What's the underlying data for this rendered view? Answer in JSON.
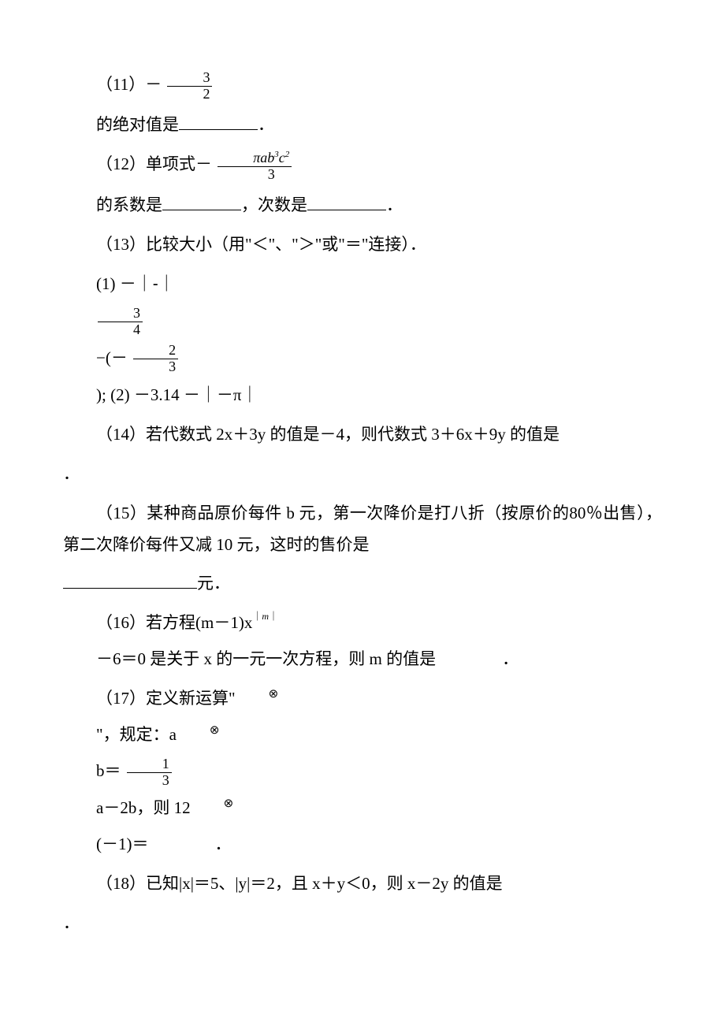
{
  "watermark_text": "",
  "colors": {
    "text": "#000000",
    "bg": "#ffffff",
    "watermark": "#f2f2f2"
  },
  "q11": {
    "prefix": "（11）－",
    "frac": {
      "num": "3",
      "den": "2"
    },
    "tail": "的绝对值是",
    "blank_w": 100,
    "end": "．"
  },
  "q12": {
    "prefix": "（12）单项式－",
    "frac_num_parts": {
      "pi": "π",
      "a": "a",
      "b": "b",
      "b_sup": "3",
      "c": "c",
      "c_sup": "2"
    },
    "frac_den": "3",
    "tail1": "的系数是",
    "blank1_w": 100,
    "mid": "，次数是",
    "blank2_w": 100,
    "end": "．"
  },
  "q13": {
    "head": "（13）比较大小（用\"＜\"、\"＞\"或\"＝\"连接）．",
    "l1a": "(1) －",
    "l1b": "｜-｜",
    "frac1": {
      "num": "3",
      "den": "4"
    },
    "mid": "−(－",
    "frac2": {
      "num": "2",
      "den": "3"
    },
    "l2": ");   (2) －3.14 －｜－π｜"
  },
  "q14": {
    "text_a": "（14）若代数式 2x＋3y 的值是－4，则代数式 3＋6x＋9y 的值是",
    "end": "．"
  },
  "q15": {
    "text_a": "（15）某种商品原价每件 b 元，第一次降价是打八折（按原价的80％出售），第二次降价每件又减 10 元，这时的售价是",
    "blank_w": 170,
    "text_b": "元．"
  },
  "q16": {
    "text_a": "（16）若方程(m－1)x",
    "sup_bar1": "｜",
    "sup_m": "m",
    "sup_bar2": "｜",
    "text_b": "－6＝0 是关于 x 的一元一次方程，则 m 的值是　　　　．"
  },
  "q17": {
    "line1a": "（17）定义新运算\"",
    "otimes": "⊗",
    "line1b": "\"，规定：a",
    "line2a": "b＝",
    "frac": {
      "num": "1",
      "den": "3"
    },
    "line3": "a－2b，则 12",
    "line4": "(－1)＝　　　　．"
  },
  "q18": {
    "text": "（18）已知|x|＝5、|y|＝2，且 x＋y＜0，则 x－2y 的值是",
    "end": "．"
  },
  "style": {
    "body_fontsize": 21,
    "frac_fontsize": 18,
    "sup_fontsize": 11,
    "watermark_fontsize": 64,
    "line_height": 1.9
  }
}
